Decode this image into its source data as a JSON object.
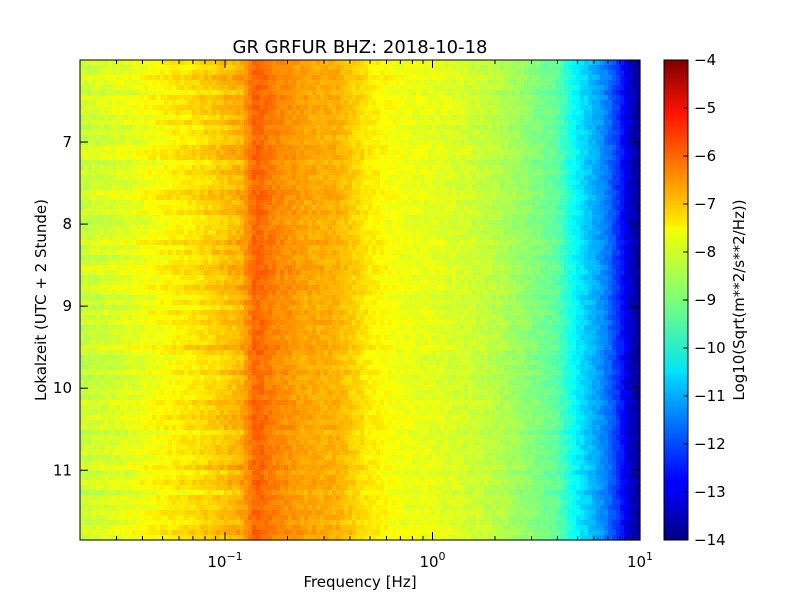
{
  "chart_data": {
    "type": "heatmap",
    "title": "GR GRFUR BHZ: 2018-10-18",
    "xlabel": "Frequency [Hz]",
    "ylabel": "Lokalzeit (UTC + 2 Stunde)",
    "xscale": "log",
    "xlim": [
      0.02,
      10
    ],
    "ylim": [
      6.0,
      11.85
    ],
    "y_inverted": true,
    "x_ticks": [
      {
        "value": 0.1,
        "base": "10",
        "exp": "−1"
      },
      {
        "value": 1,
        "base": "10",
        "exp": "0"
      },
      {
        "value": 10,
        "base": "10",
        "exp": "1"
      }
    ],
    "y_ticks": [
      {
        "value": 7,
        "label": "7"
      },
      {
        "value": 8,
        "label": "8"
      },
      {
        "value": 9,
        "label": "9"
      },
      {
        "value": 10,
        "label": "10"
      },
      {
        "value": 11,
        "label": "11"
      }
    ],
    "colorbar": {
      "label": "Log10(Sqrt(m**2/s**2/Hz))",
      "range": [
        -14,
        -4
      ],
      "colormap": "jet",
      "ticks": [
        {
          "value": -4,
          "label": "−4"
        },
        {
          "value": -5,
          "label": "−5"
        },
        {
          "value": -6,
          "label": "−6"
        },
        {
          "value": -7,
          "label": "−7"
        },
        {
          "value": -8,
          "label": "−8"
        },
        {
          "value": -9,
          "label": "−9"
        },
        {
          "value": -10,
          "label": "−10"
        },
        {
          "value": -11,
          "label": "−11"
        },
        {
          "value": -12,
          "label": "−12"
        },
        {
          "value": -13,
          "label": "−13"
        },
        {
          "value": -14,
          "label": "−14"
        }
      ]
    },
    "spectrum_profile": {
      "frequency_hz": [
        0.02,
        0.035,
        0.06,
        0.08,
        0.12,
        0.14,
        0.18,
        0.25,
        0.35,
        0.5,
        0.7,
        1,
        1.5,
        2,
        3,
        4,
        5,
        6,
        7,
        8,
        9,
        10
      ],
      "log10_amplitude": [
        -8.3,
        -8.0,
        -7.6,
        -7.4,
        -7.0,
        -6.2,
        -6.6,
        -6.9,
        -7.0,
        -7.6,
        -7.9,
        -8.0,
        -8.2,
        -8.4,
        -8.9,
        -9.3,
        -10.4,
        -11.0,
        -11.6,
        -12.4,
        -13.3,
        -13.8
      ]
    },
    "grid": false
  }
}
